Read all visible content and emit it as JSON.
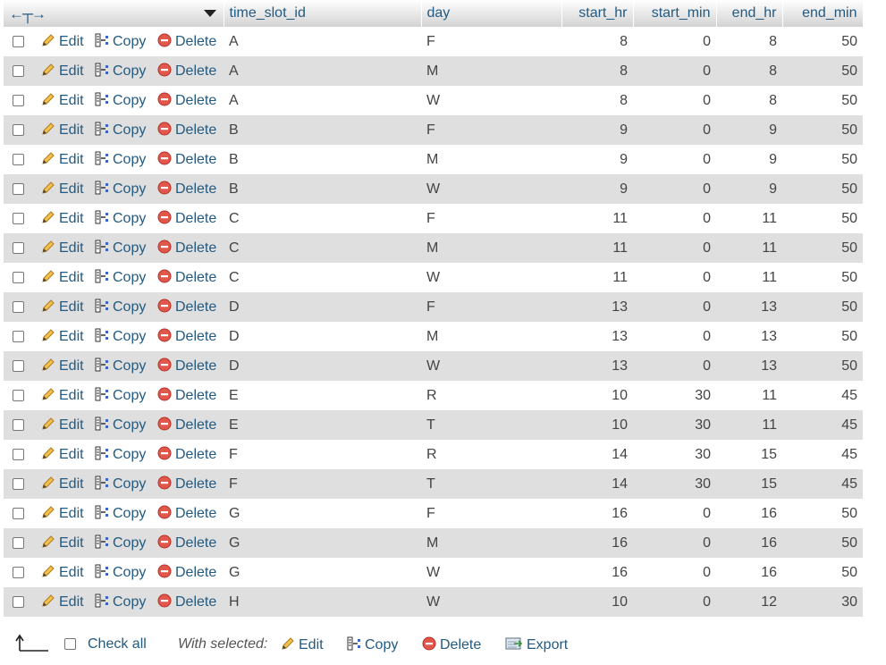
{
  "columns": [
    "time_slot_id",
    "day",
    "start_hr",
    "start_min",
    "end_hr",
    "end_min"
  ],
  "actions": {
    "edit": "Edit",
    "copy": "Copy",
    "delete": "Delete"
  },
  "rows": [
    {
      "time_slot_id": "A",
      "day": "F",
      "start_hr": "8",
      "start_min": "0",
      "end_hr": "8",
      "end_min": "50"
    },
    {
      "time_slot_id": "A",
      "day": "M",
      "start_hr": "8",
      "start_min": "0",
      "end_hr": "8",
      "end_min": "50"
    },
    {
      "time_slot_id": "A",
      "day": "W",
      "start_hr": "8",
      "start_min": "0",
      "end_hr": "8",
      "end_min": "50"
    },
    {
      "time_slot_id": "B",
      "day": "F",
      "start_hr": "9",
      "start_min": "0",
      "end_hr": "9",
      "end_min": "50"
    },
    {
      "time_slot_id": "B",
      "day": "M",
      "start_hr": "9",
      "start_min": "0",
      "end_hr": "9",
      "end_min": "50"
    },
    {
      "time_slot_id": "B",
      "day": "W",
      "start_hr": "9",
      "start_min": "0",
      "end_hr": "9",
      "end_min": "50"
    },
    {
      "time_slot_id": "C",
      "day": "F",
      "start_hr": "11",
      "start_min": "0",
      "end_hr": "11",
      "end_min": "50"
    },
    {
      "time_slot_id": "C",
      "day": "M",
      "start_hr": "11",
      "start_min": "0",
      "end_hr": "11",
      "end_min": "50"
    },
    {
      "time_slot_id": "C",
      "day": "W",
      "start_hr": "11",
      "start_min": "0",
      "end_hr": "11",
      "end_min": "50"
    },
    {
      "time_slot_id": "D",
      "day": "F",
      "start_hr": "13",
      "start_min": "0",
      "end_hr": "13",
      "end_min": "50"
    },
    {
      "time_slot_id": "D",
      "day": "M",
      "start_hr": "13",
      "start_min": "0",
      "end_hr": "13",
      "end_min": "50"
    },
    {
      "time_slot_id": "D",
      "day": "W",
      "start_hr": "13",
      "start_min": "0",
      "end_hr": "13",
      "end_min": "50"
    },
    {
      "time_slot_id": "E",
      "day": "R",
      "start_hr": "10",
      "start_min": "30",
      "end_hr": "11",
      "end_min": "45"
    },
    {
      "time_slot_id": "E",
      "day": "T",
      "start_hr": "10",
      "start_min": "30",
      "end_hr": "11",
      "end_min": "45"
    },
    {
      "time_slot_id": "F",
      "day": "R",
      "start_hr": "14",
      "start_min": "30",
      "end_hr": "15",
      "end_min": "45"
    },
    {
      "time_slot_id": "F",
      "day": "T",
      "start_hr": "14",
      "start_min": "30",
      "end_hr": "15",
      "end_min": "45"
    },
    {
      "time_slot_id": "G",
      "day": "F",
      "start_hr": "16",
      "start_min": "0",
      "end_hr": "16",
      "end_min": "50"
    },
    {
      "time_slot_id": "G",
      "day": "M",
      "start_hr": "16",
      "start_min": "0",
      "end_hr": "16",
      "end_min": "50"
    },
    {
      "time_slot_id": "G",
      "day": "W",
      "start_hr": "16",
      "start_min": "0",
      "end_hr": "16",
      "end_min": "50"
    },
    {
      "time_slot_id": "H",
      "day": "W",
      "start_hr": "10",
      "start_min": "0",
      "end_hr": "12",
      "end_min": "30"
    }
  ],
  "footer": {
    "check_all": "Check all",
    "with_selected": "With selected:",
    "edit": "Edit",
    "copy": "Copy",
    "delete": "Delete",
    "export": "Export"
  }
}
